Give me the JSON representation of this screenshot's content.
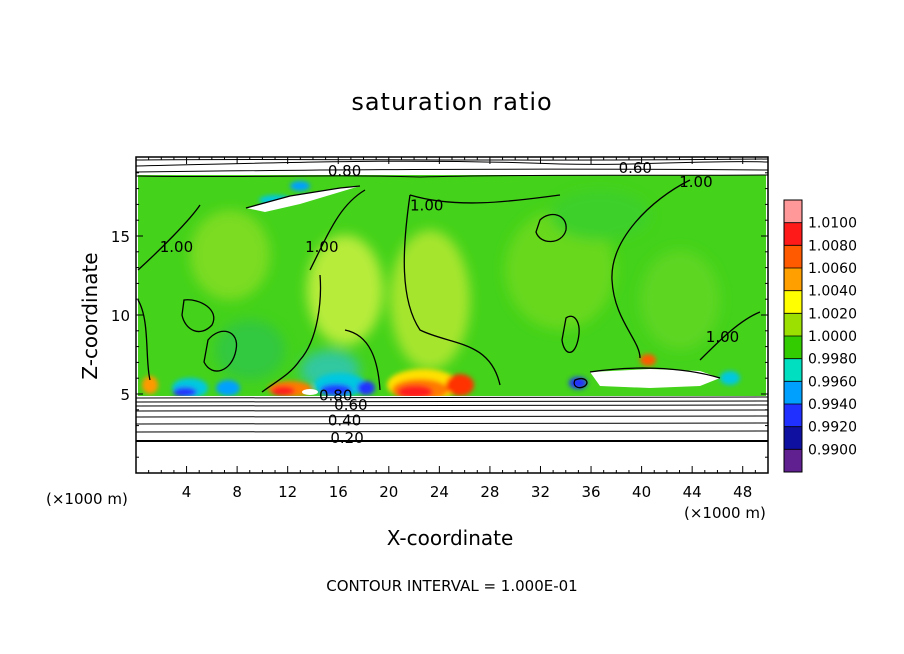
{
  "chart_data": {
    "type": "heatmap",
    "title": "saturation ratio",
    "xlabel": "X-coordinate",
    "ylabel": "Z-coordinate",
    "x_unit": "(×1000 m)",
    "z_unit": "(×1000 m)",
    "xlim": [
      0,
      50
    ],
    "ylim": [
      0,
      20
    ],
    "x_ticks": [
      4,
      8,
      12,
      16,
      20,
      24,
      28,
      32,
      36,
      40,
      44,
      48
    ],
    "y_ticks": [
      5,
      10,
      15
    ],
    "colorbar": {
      "levels": [
        "1.0100",
        "1.0080",
        "1.0060",
        "1.0040",
        "1.0020",
        "1.0000",
        "0.9980",
        "0.9960",
        "0.9940",
        "0.9920",
        "0.9900"
      ],
      "colors": [
        "#ff9999",
        "#ff1a1a",
        "#ff5a00",
        "#ffa000",
        "#ffff00",
        "#9be000",
        "#33cc00",
        "#00e0c0",
        "#00a0ff",
        "#2030ff",
        "#1010a0",
        "#602090"
      ]
    },
    "contour_labels": [
      {
        "text": "0.80",
        "x": 16.5,
        "y": 18.8
      },
      {
        "text": "0.60",
        "x": 39.5,
        "y": 19.0
      },
      {
        "text": "1.00",
        "x": 44.3,
        "y": 18.1
      },
      {
        "text": "1.00",
        "x": 23.0,
        "y": 16.6
      },
      {
        "text": "1.00",
        "x": 3.2,
        "y": 14.0
      },
      {
        "text": "1.00",
        "x": 14.7,
        "y": 14.0
      },
      {
        "text": "1.00",
        "x": 46.4,
        "y": 8.3
      },
      {
        "text": "0.80",
        "x": 15.8,
        "y": 4.6
      },
      {
        "text": "0.60",
        "x": 17.0,
        "y": 4.0
      },
      {
        "text": "0.40",
        "x": 16.5,
        "y": 3.0
      },
      {
        "text": "0.20",
        "x": 16.7,
        "y": 1.9
      }
    ],
    "contour_interval": "CONTOUR INTERVAL = 1.000E-01"
  }
}
